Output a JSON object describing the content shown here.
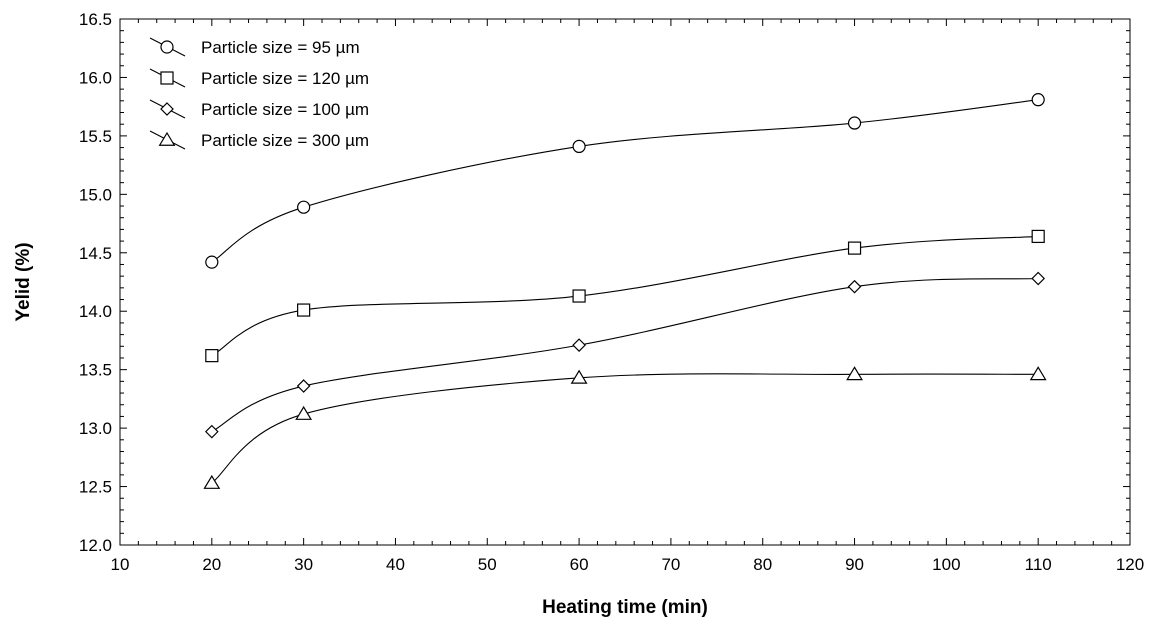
{
  "chart_data": {
    "type": "line",
    "title": "",
    "xlabel": "Heating time (min)",
    "ylabel": "Yelid (%)",
    "xlim": [
      10,
      120
    ],
    "ylim": [
      12.0,
      16.5
    ],
    "x_ticks": [
      10,
      20,
      30,
      40,
      50,
      60,
      70,
      80,
      90,
      100,
      110,
      120
    ],
    "y_ticks": [
      "12.0",
      "12.5",
      "13.0",
      "13.5",
      "14.0",
      "14.5",
      "15.0",
      "15.5",
      "16.0",
      "16.5"
    ],
    "grid": false,
    "legend_position": "top-left",
    "x": [
      20,
      30,
      60,
      90,
      110
    ],
    "series": [
      {
        "name": "Particle size = 95 µm",
        "marker": "circle",
        "values": [
          14.42,
          14.89,
          15.41,
          15.61,
          15.81
        ]
      },
      {
        "name": "Particle size = 120 µm",
        "marker": "square",
        "values": [
          13.62,
          14.01,
          14.13,
          14.54,
          14.64
        ]
      },
      {
        "name": "Particle size = 100 µm",
        "marker": "diamond",
        "values": [
          12.97,
          13.36,
          13.71,
          14.21,
          14.28
        ]
      },
      {
        "name": "Particle size = 300 µm",
        "marker": "triangle",
        "values": [
          12.53,
          13.12,
          13.43,
          13.46,
          13.46
        ]
      }
    ]
  }
}
